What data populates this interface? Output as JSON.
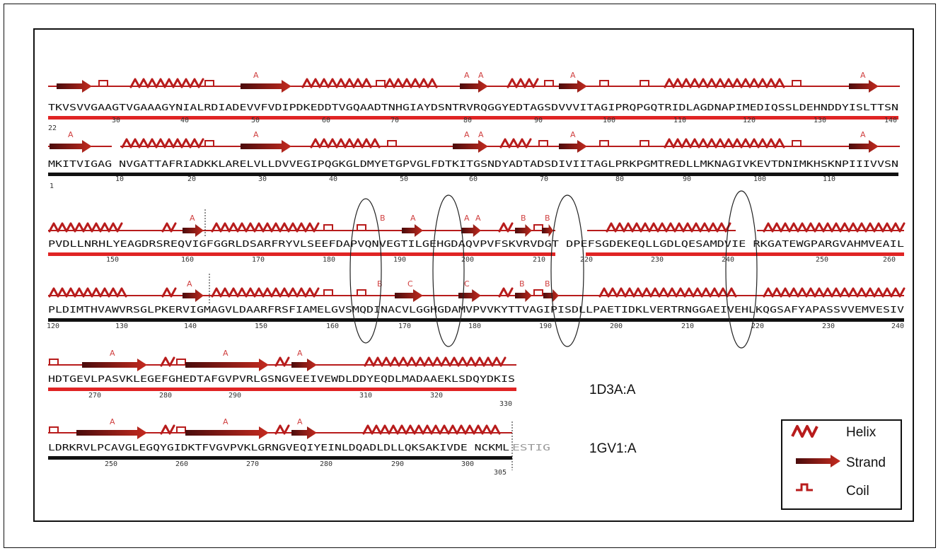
{
  "colors": {
    "helix": "#b81c1c",
    "strand_dark": "#5a1010",
    "strand_light": "#c0281f",
    "coil": "#b81c1c",
    "red_bar": "#e02424",
    "black_bar": "#111111",
    "label": "#d04040"
  },
  "rows": [
    {
      "text": "TKVSVVGAAGTVGAAAGYNIALRDIADEVVFVDIPDKEDDTVGQAADTNHGIAYDSNTRVRQGGYEDTAGSDVVVITAGIPRQPGQTRIDLAGDNAPIMEDIQSSLDEHNDDYISLTTSN",
      "ticks": [
        "22",
        "30",
        "40",
        "50",
        "60",
        "70",
        "80",
        "90",
        "100",
        "110",
        "120",
        "130",
        "140"
      ],
      "labels": [
        "A",
        "A",
        "A",
        "A",
        "A"
      ]
    },
    {
      "text": "MKITVIGAG NVGATTAFRIADKKLARELVLLDVVEGIPQGKGLDMYETGPVGLFDTKITGSNDYADTADSDIVIITAGLPRKPGMTREDLLMKNAGIVKEVTDNIMKHSKNPIIIVVSN",
      "ticks": [
        "1",
        "10",
        "20",
        "30",
        "40",
        "50",
        "60",
        "70",
        "80",
        "90",
        "100",
        "110"
      ],
      "labels": [
        "A",
        "A",
        "A",
        "A",
        "A",
        "A"
      ]
    },
    {
      "text": "PVDLLNRHLYEAGDRSREQVIGFGGRLDSARFRYVLSEEFDAPVQNVEGTILGEHGDAQVPVFSKVRVDGT  DPEFSGDEKEQLLGDLQESAMDVIE  RKGATEWGPARGVAHMVEAIL",
      "ticks": [
        "150",
        "160",
        "170",
        "180",
        "190",
        "200",
        "210",
        "220",
        "230",
        "240",
        "250",
        "260"
      ],
      "labels": [
        "A",
        "B",
        "A",
        "A",
        "A",
        "B",
        "B"
      ]
    },
    {
      "text": "PLDIMTHVAWVRSGLPKERVIGMAGVLDAARFRSFIAMELGVSMQDINACVLGGHGDAMVPVVKYTTVAGIPISDLLPAETIDKLVERTRNGGAEIVEHLKQGSAFYAPASSVVEMVESIV",
      "ticks": [
        "120",
        "130",
        "140",
        "150",
        "160",
        "170",
        "180",
        "190",
        "200",
        "210",
        "220",
        "230",
        "240"
      ],
      "labels": [
        "A",
        "B",
        "C",
        "C",
        "B",
        "B"
      ]
    },
    {
      "text": "HDTGEVLPASVKLEGEFGHEDTAFGVPVRLGSNGVEEIVEWDLDDYEQDLMADAAEKLSDQYDKIS",
      "ticks": [
        "270",
        "280",
        "290",
        "310",
        "320",
        "330"
      ],
      "labels": [
        "A",
        "A",
        "A"
      ]
    },
    {
      "text": "LDRKRVLPCAVGLEGQYGIDKTFVGVPVKLGRNGVEQIYEINLDQADLDLLQKSAKIVDE NCKML",
      "text_gray": "ESTIG",
      "ticks": [
        "250",
        "260",
        "270",
        "280",
        "290",
        "300",
        "305"
      ],
      "labels": [
        "A",
        "A",
        "A"
      ]
    }
  ],
  "chains": {
    "top": "1D3A:A",
    "bottom": "1GV1:A"
  },
  "legend": {
    "helix": "Helix",
    "strand": "Strand",
    "coil": "Coil"
  }
}
